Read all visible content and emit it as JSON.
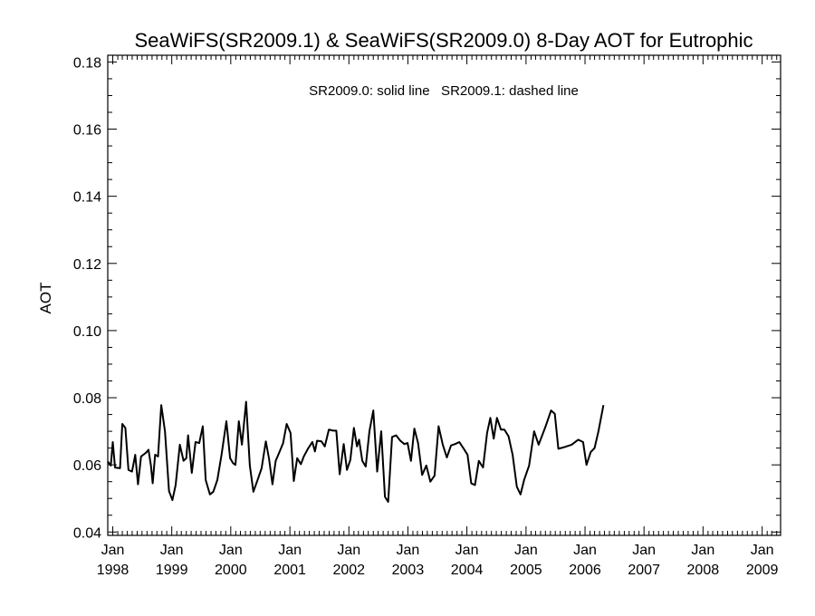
{
  "chart_data": {
    "type": "line",
    "title": "SeaWiFS(SR2009.1) & SeaWiFS(SR2009.0) 8-Day AOT for Eutrophic",
    "annotation": "SR2009.0: solid line   SR2009.1: dashed line",
    "xlabel": "",
    "ylabel": "AOT",
    "xlim": [
      "1997-12-01",
      "2009-04-25"
    ],
    "ylim": [
      0.039,
      0.182
    ],
    "yticks": [
      "0.04",
      "0.06",
      "0.08",
      "0.10",
      "0.12",
      "0.14",
      "0.16",
      "0.18"
    ],
    "xticks": [
      {
        "month": "Jan",
        "year": "1998",
        "date": "1998-01-01"
      },
      {
        "month": "Jan",
        "year": "1999",
        "date": "1999-01-01"
      },
      {
        "month": "Jan",
        "year": "2000",
        "date": "2000-01-01"
      },
      {
        "month": "Jan",
        "year": "2001",
        "date": "2001-01-01"
      },
      {
        "month": "Jan",
        "year": "2002",
        "date": "2002-01-01"
      },
      {
        "month": "Jan",
        "year": "2003",
        "date": "2003-01-01"
      },
      {
        "month": "Jan",
        "year": "2004",
        "date": "2004-01-01"
      },
      {
        "month": "Jan",
        "year": "2005",
        "date": "2005-01-01"
      },
      {
        "month": "Jan",
        "year": "2006",
        "date": "2006-01-01"
      },
      {
        "month": "Jan",
        "year": "2007",
        "date": "2007-01-01"
      },
      {
        "month": "Jan",
        "year": "2008",
        "date": "2008-01-01"
      },
      {
        "month": "Jan",
        "year": "2009",
        "date": "2009-01-01"
      }
    ],
    "series": [
      {
        "style": "solid",
        "color": "#000000",
        "points": [
          [
            "1997-12-01",
            0.061
          ],
          [
            "1997-12-20",
            0.0598
          ],
          [
            "1998-01-01",
            0.0668
          ],
          [
            "1998-01-15",
            0.0592
          ],
          [
            "1998-02-15",
            0.059
          ],
          [
            "1998-03-01",
            0.0722
          ],
          [
            "1998-03-20",
            0.071
          ],
          [
            "1998-04-08",
            0.0585
          ],
          [
            "1998-04-30",
            0.058
          ],
          [
            "1998-05-20",
            0.063
          ],
          [
            "1998-06-06",
            0.0542
          ],
          [
            "1998-06-25",
            0.0625
          ],
          [
            "1998-07-25",
            0.0636
          ],
          [
            "1998-08-10",
            0.0645
          ],
          [
            "1998-08-25",
            0.0598
          ],
          [
            "1998-09-05",
            0.0545
          ],
          [
            "1998-09-20",
            0.063
          ],
          [
            "1998-10-08",
            0.0625
          ],
          [
            "1998-10-28",
            0.0778
          ],
          [
            "1998-11-20",
            0.07
          ],
          [
            "1998-12-15",
            0.0522
          ],
          [
            "1999-01-05",
            0.0495
          ],
          [
            "1999-01-25",
            0.054
          ],
          [
            "1999-02-20",
            0.066
          ],
          [
            "1999-03-15",
            0.0612
          ],
          [
            "1999-04-01",
            0.062
          ],
          [
            "1999-04-12",
            0.0688
          ],
          [
            "1999-05-05",
            0.0576
          ],
          [
            "1999-05-28",
            0.0668
          ],
          [
            "1999-06-20",
            0.0665
          ],
          [
            "1999-07-12",
            0.0715
          ],
          [
            "1999-07-30",
            0.0555
          ],
          [
            "1999-08-25",
            0.0512
          ],
          [
            "1999-09-15",
            0.052
          ],
          [
            "1999-10-10",
            0.0555
          ],
          [
            "1999-11-05",
            0.063
          ],
          [
            "1999-12-05",
            0.073
          ],
          [
            "1999-12-28",
            0.062
          ],
          [
            "2000-01-15",
            0.0605
          ],
          [
            "2000-01-30",
            0.06
          ],
          [
            "2000-02-20",
            0.073
          ],
          [
            "2000-03-10",
            0.066
          ],
          [
            "2000-04-05",
            0.0788
          ],
          [
            "2000-04-28",
            0.0598
          ],
          [
            "2000-05-20",
            0.052
          ],
          [
            "2000-06-15",
            0.0555
          ],
          [
            "2000-07-10",
            0.059
          ],
          [
            "2000-08-05",
            0.067
          ],
          [
            "2000-08-25",
            0.0618
          ],
          [
            "2000-09-15",
            0.0542
          ],
          [
            "2000-10-05",
            0.0612
          ],
          [
            "2000-10-28",
            0.0638
          ],
          [
            "2000-11-20",
            0.0665
          ],
          [
            "2000-12-12",
            0.0722
          ],
          [
            "2001-01-05",
            0.0695
          ],
          [
            "2001-01-25",
            0.0552
          ],
          [
            "2001-02-15",
            0.062
          ],
          [
            "2001-03-10",
            0.0602
          ],
          [
            "2001-03-28",
            0.0625
          ],
          [
            "2001-04-25",
            0.065
          ],
          [
            "2001-05-20",
            0.0668
          ],
          [
            "2001-06-05",
            0.064
          ],
          [
            "2001-06-18",
            0.0672
          ],
          [
            "2001-07-15",
            0.067
          ],
          [
            "2001-08-05",
            0.0655
          ],
          [
            "2001-08-30",
            0.0705
          ],
          [
            "2001-09-25",
            0.0702
          ],
          [
            "2001-10-15",
            0.0702
          ],
          [
            "2001-11-05",
            0.0572
          ],
          [
            "2001-11-30",
            0.0662
          ],
          [
            "2001-12-20",
            0.0585
          ],
          [
            "2002-01-10",
            0.0615
          ],
          [
            "2002-02-01",
            0.071
          ],
          [
            "2002-02-20",
            0.0655
          ],
          [
            "2002-03-05",
            0.0675
          ],
          [
            "2002-03-25",
            0.0612
          ],
          [
            "2002-04-15",
            0.0595
          ],
          [
            "2002-05-08",
            0.07
          ],
          [
            "2002-06-01",
            0.0762
          ],
          [
            "2002-06-25",
            0.058
          ],
          [
            "2002-07-20",
            0.07
          ],
          [
            "2002-08-12",
            0.0505
          ],
          [
            "2002-09-01",
            0.049
          ],
          [
            "2002-09-25",
            0.0683
          ],
          [
            "2002-10-20",
            0.0688
          ],
          [
            "2002-11-15",
            0.0672
          ],
          [
            "2002-12-10",
            0.0662
          ],
          [
            "2002-12-30",
            0.0665
          ],
          [
            "2003-01-20",
            0.0612
          ],
          [
            "2003-02-10",
            0.0708
          ],
          [
            "2003-03-05",
            0.0665
          ],
          [
            "2003-03-30",
            0.057
          ],
          [
            "2003-04-25",
            0.0598
          ],
          [
            "2003-05-20",
            0.055
          ],
          [
            "2003-06-15",
            0.0568
          ],
          [
            "2003-07-10",
            0.0715
          ],
          [
            "2003-08-05",
            0.066
          ],
          [
            "2003-08-30",
            0.0622
          ],
          [
            "2003-09-25",
            0.0658
          ],
          [
            "2003-10-20",
            0.0662
          ],
          [
            "2003-11-15",
            0.0668
          ],
          [
            "2003-12-10",
            0.065
          ],
          [
            "2004-01-05",
            0.063
          ],
          [
            "2004-01-28",
            0.0545
          ],
          [
            "2004-02-20",
            0.054
          ],
          [
            "2004-03-15",
            0.0612
          ],
          [
            "2004-04-10",
            0.0592
          ],
          [
            "2004-05-05",
            0.0695
          ],
          [
            "2004-05-25",
            0.074
          ],
          [
            "2004-06-15",
            0.0678
          ],
          [
            "2004-07-05",
            0.074
          ],
          [
            "2004-07-30",
            0.0705
          ],
          [
            "2004-08-20",
            0.0705
          ],
          [
            "2004-09-15",
            0.0685
          ],
          [
            "2004-10-10",
            0.063
          ],
          [
            "2004-11-05",
            0.0535
          ],
          [
            "2004-11-28",
            0.0512
          ],
          [
            "2004-12-20",
            0.0555
          ],
          [
            "2005-01-20",
            0.0598
          ],
          [
            "2005-02-20",
            0.07
          ],
          [
            "2005-03-20",
            0.066
          ],
          [
            "2005-04-30",
            0.0712
          ],
          [
            "2005-06-05",
            0.0762
          ],
          [
            "2005-06-28",
            0.0752
          ],
          [
            "2005-07-20",
            0.0648
          ],
          [
            "2005-08-20",
            0.0652
          ],
          [
            "2005-10-10",
            0.066
          ],
          [
            "2005-11-20",
            0.0675
          ],
          [
            "2005-12-20",
            0.0668
          ],
          [
            "2006-01-10",
            0.06
          ],
          [
            "2006-02-05",
            0.0638
          ],
          [
            "2006-03-01",
            0.065
          ],
          [
            "2006-03-25",
            0.07
          ],
          [
            "2006-04-25",
            0.0778
          ]
        ]
      }
    ]
  }
}
